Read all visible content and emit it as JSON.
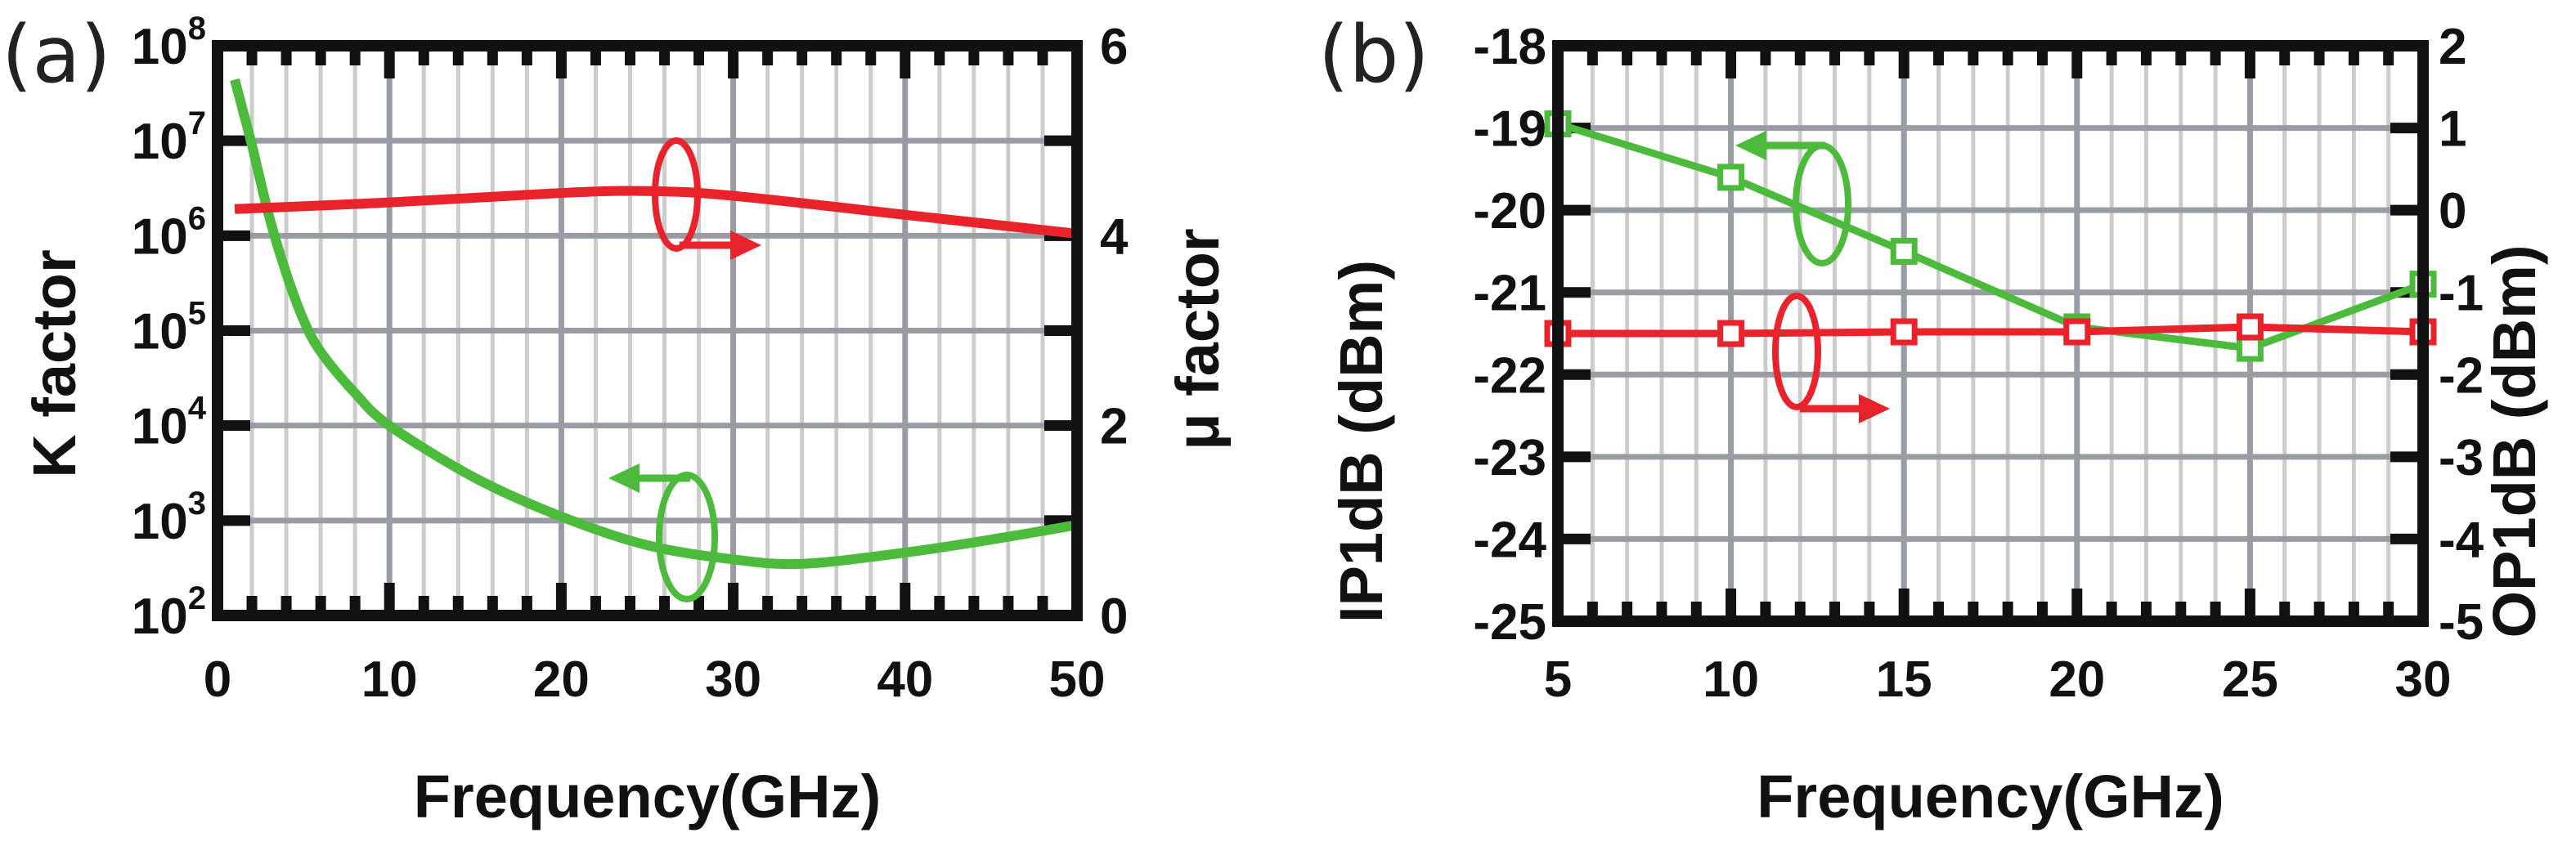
{
  "chart_data": [
    {
      "panel_label": "(a)",
      "type": "line",
      "xlabel": "Frequency(GHz)",
      "ylabel": "K factor",
      "ylabel_right": "μ factor",
      "xlim": [
        0,
        50
      ],
      "ylim": [
        100,
        100000000
      ],
      "yscale": "log",
      "ylim_right": [
        0,
        6
      ],
      "grid": true,
      "x_ticks": [
        "0",
        "10",
        "20",
        "30",
        "40",
        "50"
      ],
      "y_ticks": [
        {
          "base": "10",
          "exp": "2"
        },
        {
          "base": "10",
          "exp": "3"
        },
        {
          "base": "10",
          "exp": "4"
        },
        {
          "base": "10",
          "exp": "5"
        },
        {
          "base": "10",
          "exp": "6"
        },
        {
          "base": "10",
          "exp": "7"
        },
        {
          "base": "10",
          "exp": "8"
        }
      ],
      "y_ticks_right": [
        "0",
        "2",
        "4",
        "6"
      ],
      "series": [
        {
          "name": "K factor",
          "axis": "left",
          "color": "#4cbb3c",
          "x": [
            1,
            2,
            3,
            4,
            5,
            6,
            8,
            10,
            15,
            20,
            25,
            30,
            34,
            40,
            45,
            50
          ],
          "y": [
            44000000,
            9000000,
            1600000,
            400000,
            130000,
            60000,
            22000,
            10000,
            2800,
            1100,
            550,
            390,
            350,
            460,
            630,
            900
          ]
        },
        {
          "name": "μ factor",
          "axis": "right",
          "color": "#e8232b",
          "x": [
            1,
            10,
            20,
            25,
            30,
            40,
            50
          ],
          "y": [
            4.28,
            4.35,
            4.45,
            4.47,
            4.42,
            4.22,
            4.02
          ]
        }
      ]
    },
    {
      "panel_label": "(b)",
      "type": "line",
      "xlabel": "Frequency(GHz)",
      "ylabel": "IP1dB (dBm)",
      "ylabel_right": "OP1dB (dBm)",
      "xlim": [
        5,
        30
      ],
      "ylim": [
        -25,
        -18
      ],
      "ylim_right": [
        -5,
        2
      ],
      "grid": true,
      "x_ticks": [
        "5",
        "10",
        "15",
        "20",
        "25",
        "30"
      ],
      "y_ticks": [
        "-25",
        "-24",
        "-23",
        "-22",
        "-21",
        "-20",
        "-19",
        "-18"
      ],
      "y_ticks_right": [
        "-5",
        "-4",
        "-3",
        "-2",
        "-1",
        "0",
        "1",
        "2"
      ],
      "series": [
        {
          "name": "IP1dB",
          "axis": "left",
          "color": "#4cbb3c",
          "marker": "square",
          "x": [
            5,
            10,
            15,
            20,
            25,
            30
          ],
          "y": [
            -18.95,
            -19.6,
            -20.5,
            -21.42,
            -21.68,
            -20.9
          ]
        },
        {
          "name": "OP1dB",
          "axis": "right",
          "color": "#e8232b",
          "marker": "square",
          "x": [
            5,
            10,
            15,
            20,
            25,
            30
          ],
          "y": [
            -1.5,
            -1.5,
            -1.48,
            -1.48,
            -1.42,
            -1.48
          ]
        }
      ]
    }
  ]
}
